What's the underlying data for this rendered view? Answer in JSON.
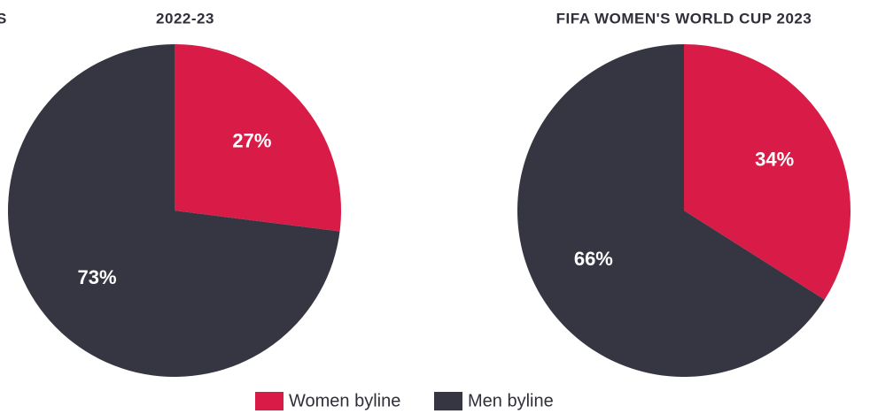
{
  "chart_data": [
    {
      "type": "pie",
      "title": "2022-23",
      "clipped_text": "S",
      "categories": [
        "Women byline",
        "Men byline"
      ],
      "values": [
        27,
        73
      ],
      "value_labels": [
        "27%",
        "73%"
      ],
      "colors": [
        "#d81b47",
        "#363642"
      ]
    },
    {
      "type": "pie",
      "title": "FIFA WOMEN'S WORLD CUP 2023",
      "categories": [
        "Women byline",
        "Men byline"
      ],
      "values": [
        34,
        66
      ],
      "value_labels": [
        "34%",
        "66%"
      ],
      "colors": [
        "#d81b47",
        "#363642"
      ]
    }
  ]
}
